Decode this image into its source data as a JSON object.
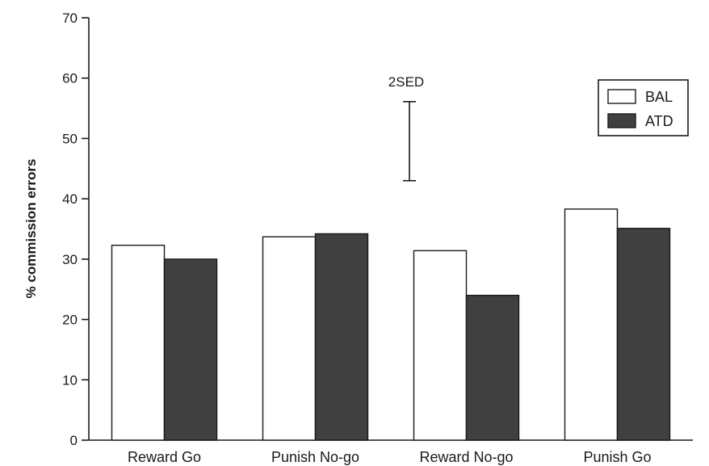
{
  "chart_data": {
    "type": "bar",
    "title": "",
    "xlabel": "",
    "ylabel": "% commission errors",
    "ylim": [
      0,
      70
    ],
    "yticks": [
      0,
      10,
      20,
      30,
      40,
      50,
      60,
      70
    ],
    "grid": false,
    "legend_position": "top-right",
    "categories": [
      "Reward Go",
      "Punish No-go",
      "Reward No-go",
      "Punish Go"
    ],
    "series": [
      {
        "name": "BAL",
        "color": "#ffffff",
        "values": [
          32.3,
          33.7,
          31.4,
          38.3
        ]
      },
      {
        "name": "ATD",
        "color": "#404040",
        "values": [
          30.0,
          34.2,
          24.0,
          35.1
        ]
      }
    ],
    "annotation": {
      "label": "2SED",
      "low": 43.0,
      "high": 56.1
    }
  }
}
